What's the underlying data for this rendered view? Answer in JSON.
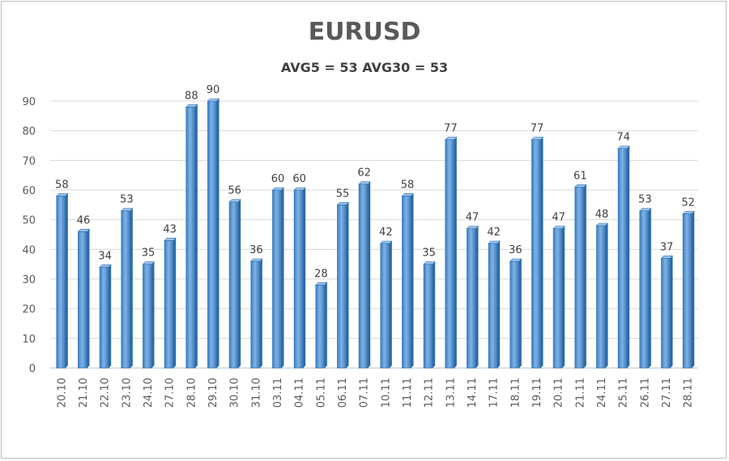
{
  "chart_data": {
    "type": "bar",
    "title": "EURUSD",
    "subtitle": "AVG5 = 53 AVG30 = 53",
    "xlabel": "",
    "ylabel": "",
    "ylim": [
      0,
      90
    ],
    "yticks": [
      0,
      10,
      20,
      30,
      40,
      50,
      60,
      70,
      80,
      90
    ],
    "grid": true,
    "legend": "none",
    "bar_color": "#5b9bd5",
    "bar_edge_color": "#2e75b6",
    "categories": [
      "20.10",
      "21.10",
      "22.10",
      "23.10",
      "24.10",
      "27.10",
      "28.10",
      "29.10",
      "30.10",
      "31.10",
      "03.11",
      "04.11",
      "05.11",
      "06.11",
      "07.11",
      "10.11",
      "11.11",
      "12.11",
      "13.11",
      "14.11",
      "17.11",
      "18.11",
      "19.11",
      "20.11",
      "21.11",
      "24.11",
      "25.11",
      "26.11",
      "27.11",
      "28.11"
    ],
    "values": [
      58,
      46,
      34,
      53,
      35,
      43,
      88,
      90,
      56,
      36,
      60,
      60,
      28,
      55,
      62,
      42,
      58,
      35,
      77,
      47,
      42,
      36,
      77,
      47,
      61,
      48,
      74,
      53,
      37,
      52
    ]
  }
}
